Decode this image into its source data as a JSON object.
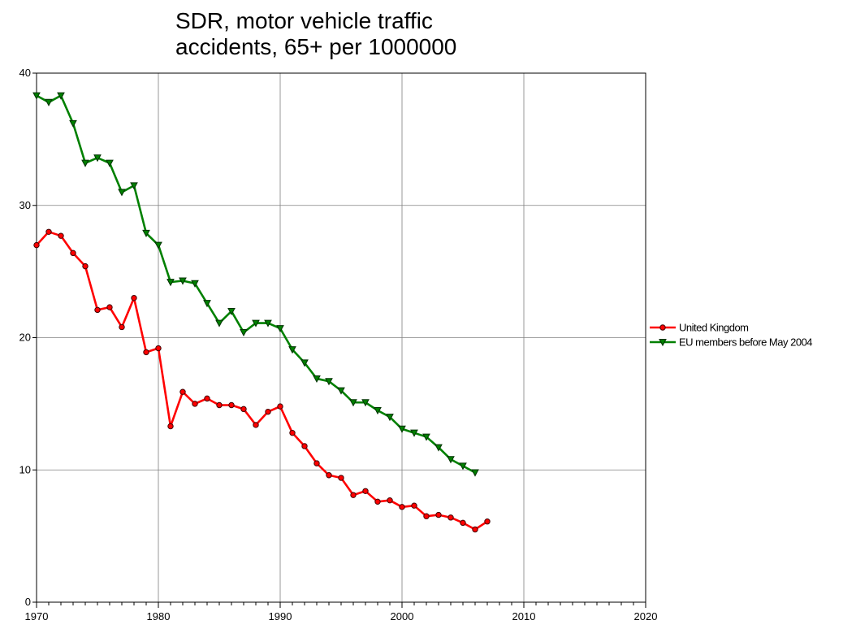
{
  "chart_data": {
    "type": "line",
    "title": "SDR, motor vehicle traffic accidents, 65+ per 1000000",
    "x": [
      1970,
      1971,
      1972,
      1973,
      1974,
      1975,
      1976,
      1977,
      1978,
      1979,
      1980,
      1981,
      1982,
      1983,
      1984,
      1985,
      1986,
      1987,
      1988,
      1989,
      1990,
      1991,
      1992,
      1993,
      1994,
      1995,
      1996,
      1997,
      1998,
      1999,
      2000,
      2001,
      2002,
      2003,
      2004,
      2005,
      2006,
      2007
    ],
    "series": [
      {
        "name": "United Kingdom",
        "color": "#ff0000",
        "marker": "circle",
        "values": [
          27.0,
          28.0,
          27.7,
          26.4,
          25.4,
          22.1,
          22.3,
          20.8,
          23.0,
          18.9,
          19.2,
          13.3,
          15.9,
          15.0,
          15.4,
          14.9,
          14.9,
          14.6,
          13.4,
          14.4,
          14.8,
          12.8,
          11.8,
          10.5,
          9.6,
          9.4,
          8.1,
          8.4,
          7.6,
          7.7,
          7.2,
          7.3,
          6.5,
          6.6,
          6.4,
          6.0,
          5.5,
          6.1
        ]
      },
      {
        "name": "EU members before May 2004",
        "color": "#008000",
        "marker": "triangle-down",
        "values": [
          38.3,
          37.8,
          38.3,
          36.2,
          33.2,
          33.6,
          33.2,
          31.0,
          31.5,
          27.9,
          27.0,
          24.2,
          24.3,
          24.1,
          22.6,
          21.1,
          22.0,
          20.4,
          21.1,
          21.1,
          20.7,
          19.1,
          18.1,
          16.9,
          16.7,
          16.0,
          15.1,
          15.1,
          14.5,
          14.0,
          13.1,
          12.8,
          12.5,
          11.7,
          10.8,
          10.3,
          9.8,
          null
        ]
      }
    ],
    "xlim": [
      1970,
      2020
    ],
    "xticks": [
      1970,
      1980,
      1990,
      2000,
      2010,
      2020
    ],
    "ylim": [
      0,
      40
    ],
    "yticks": [
      0,
      10,
      20,
      30,
      40
    ],
    "grid": true,
    "legend": "right"
  }
}
